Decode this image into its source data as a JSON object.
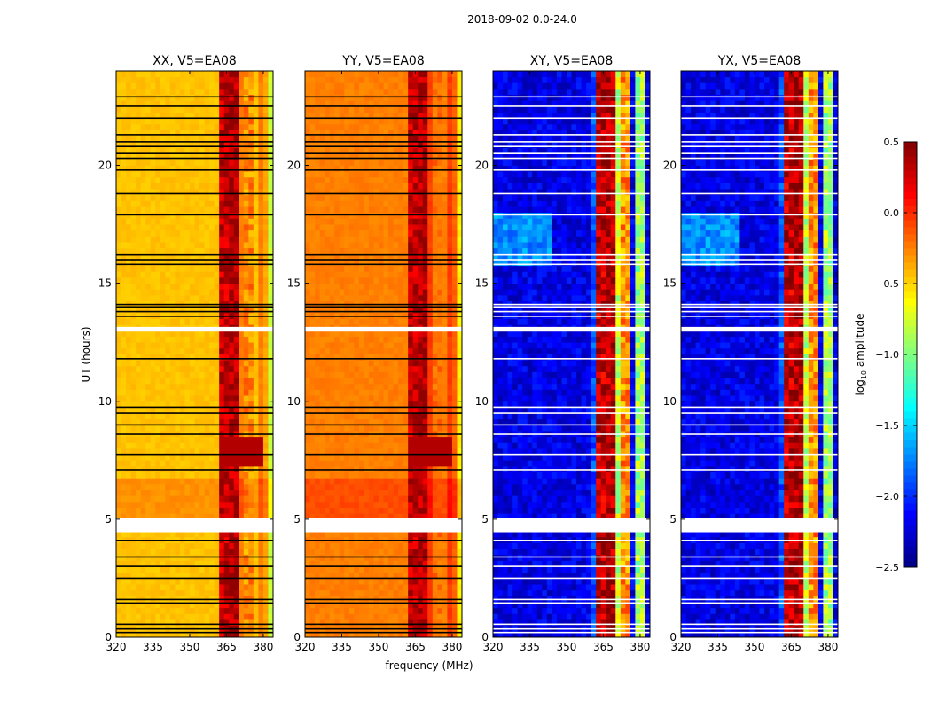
{
  "chart_data": {
    "type": "heatmap",
    "title": "2018-09-02 0.0-24.0",
    "xlabel": "frequency (MHz)",
    "ylabel": "UT (hours)",
    "xlim": [
      320,
      384
    ],
    "ylim": [
      0,
      24
    ],
    "xticks": [
      320,
      335,
      350,
      365,
      380
    ],
    "yticks": [
      0,
      5,
      10,
      15,
      20
    ],
    "panels": [
      {
        "title": "XX, V5=EA08",
        "kind": "parallel",
        "base": -0.45
      },
      {
        "title": "YY, V5=EA08",
        "kind": "parallel",
        "base": -0.25
      },
      {
        "title": "XY, V5=EA08",
        "kind": "cross",
        "base": -2.2
      },
      {
        "title": "YX, V5=EA08",
        "kind": "cross",
        "base": -2.2
      }
    ],
    "rfi_bands_mhz": [
      [
        362,
        365,
        0.3
      ],
      [
        366,
        369,
        0.35
      ],
      [
        370,
        372,
        -0.8
      ],
      [
        373,
        376,
        -0.3
      ],
      [
        378,
        381,
        -0.9
      ]
    ],
    "flagged_times_h": [
      0.2,
      0.35,
      0.55,
      1.45,
      1.6,
      2.5,
      3.0,
      3.4,
      4.1,
      4.5,
      7.1,
      7.75,
      8.6,
      9.0,
      9.5,
      9.75,
      11.8,
      13.6,
      13.8,
      14.0,
      14.1,
      15.8,
      16.0,
      16.2,
      17.9,
      18.8,
      19.8,
      20.3,
      20.5,
      20.8,
      21.0,
      21.3,
      22.0,
      22.5,
      22.9
    ],
    "flagged_ranges_h": [
      [
        4.45,
        5.05
      ],
      [
        12.95,
        13.15
      ]
    ],
    "colorbar": {
      "label": "log10 amplitude",
      "range": [
        -2.5,
        0.5
      ],
      "ticks": [
        "0.5",
        "0.0",
        "−0.5",
        "−1.0",
        "−1.5",
        "−2.0",
        "−2.5"
      ],
      "colormap": "jet"
    }
  }
}
